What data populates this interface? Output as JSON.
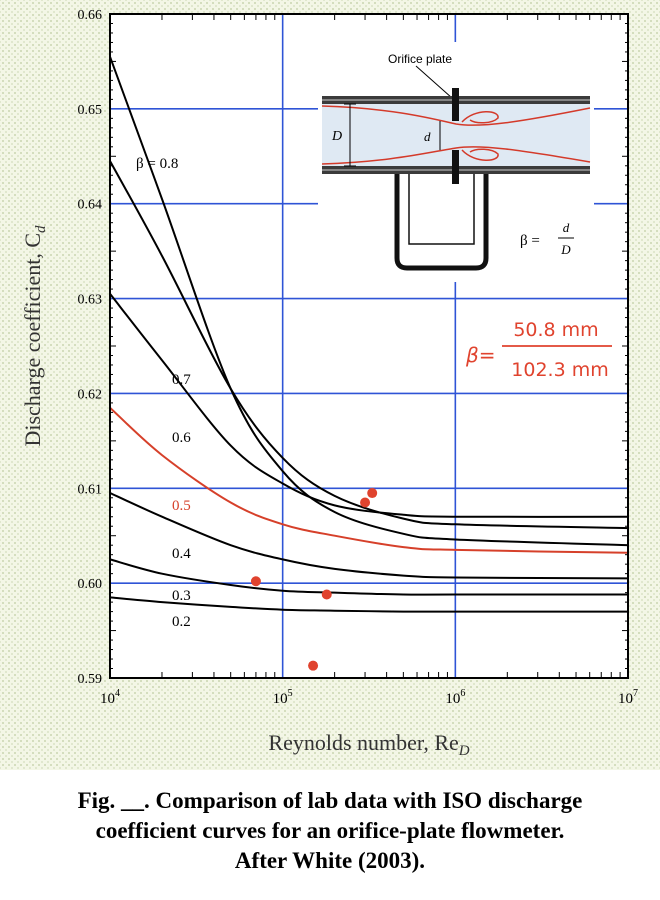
{
  "chart_data": {
    "type": "line",
    "xscale": "log",
    "xlim": [
      10000,
      10000000
    ],
    "ylim": [
      0.59,
      0.66
    ],
    "xlabel_prefix": "Reynolds number, Re",
    "xlabel_sub": "D",
    "ylabel_prefix": "Discharge coefficient, C",
    "ylabel_sub": "d",
    "x_ticks": [
      {
        "value": 10000,
        "base": "10",
        "exp": "4"
      },
      {
        "value": 100000,
        "base": "10",
        "exp": "5"
      },
      {
        "value": 1000000,
        "base": "10",
        "exp": "6"
      },
      {
        "value": 10000000,
        "base": "10",
        "exp": "7"
      }
    ],
    "y_ticks": [
      {
        "value": 0.59,
        "label": "0.59"
      },
      {
        "value": 0.6,
        "label": "0.60"
      },
      {
        "value": 0.61,
        "label": "0.61"
      },
      {
        "value": 0.62,
        "label": "0.62"
      },
      {
        "value": 0.63,
        "label": "0.63"
      },
      {
        "value": 0.64,
        "label": "0.64"
      },
      {
        "value": 0.65,
        "label": "0.65"
      },
      {
        "value": 0.66,
        "label": "0.66"
      }
    ],
    "series": [
      {
        "name": "β = 0.8",
        "label": "β = 0.8",
        "color": "#000000",
        "x": [
          10000,
          20000,
          50000,
          100000,
          200000,
          500000,
          1000000,
          10000000
        ],
        "y": [
          0.6555,
          0.6405,
          0.6205,
          0.6118,
          0.6075,
          0.6052,
          0.6046,
          0.604
        ]
      },
      {
        "name": "0.7",
        "label": "0.7",
        "color": "#000000",
        "x": [
          10000,
          20000,
          50000,
          100000,
          200000,
          500000,
          1000000,
          10000000
        ],
        "y": [
          0.6445,
          0.6345,
          0.6205,
          0.6132,
          0.6092,
          0.6068,
          0.6062,
          0.6058
        ]
      },
      {
        "name": "0.6",
        "label": "0.6",
        "color": "#000000",
        "x": [
          10000,
          20000,
          50000,
          100000,
          200000,
          500000,
          1000000,
          10000000
        ],
        "y": [
          0.6305,
          0.6235,
          0.6145,
          0.6105,
          0.6082,
          0.6072,
          0.607,
          0.607
        ]
      },
      {
        "name": "0.5",
        "label": "0.5",
        "color": "#d6402a",
        "x": [
          10000,
          20000,
          50000,
          100000,
          200000,
          500000,
          1000000,
          10000000
        ],
        "y": [
          0.6185,
          0.6135,
          0.6085,
          0.6062,
          0.605,
          0.6038,
          0.6035,
          0.6032
        ]
      },
      {
        "name": "0.4",
        "label": "0.4",
        "color": "#000000",
        "x": [
          10000,
          20000,
          50000,
          100000,
          200000,
          500000,
          1000000,
          10000000
        ],
        "y": [
          0.6095,
          0.607,
          0.604,
          0.6025,
          0.6015,
          0.6008,
          0.6006,
          0.6005
        ]
      },
      {
        "name": "0.3",
        "label": "0.3",
        "color": "#000000",
        "x": [
          10000,
          20000,
          50000,
          100000,
          200000,
          500000,
          1000000,
          10000000
        ],
        "y": [
          0.6025,
          0.601,
          0.5998,
          0.5992,
          0.599,
          0.5988,
          0.5988,
          0.5988
        ]
      },
      {
        "name": "0.2",
        "label": "0.2",
        "color": "#000000",
        "x": [
          10000,
          20000,
          50000,
          100000,
          200000,
          500000,
          1000000,
          10000000
        ],
        "y": [
          0.5985,
          0.598,
          0.5975,
          0.5972,
          0.5971,
          0.597,
          0.597,
          0.597
        ]
      }
    ],
    "lab_points": {
      "name": "lab data",
      "color": "#e0432e",
      "x": [
        70000,
        150000,
        180000,
        300000,
        330000
      ],
      "y": [
        0.6002,
        0.5913,
        0.5988,
        0.6085,
        0.6095
      ]
    },
    "inset": {
      "title": "Orifice plate",
      "d_label": "d",
      "D_label": "D",
      "beta_lhs": "β =",
      "beta_num": "d",
      "beta_den": "D"
    },
    "annotation": {
      "lhs": "β=",
      "numerator": "50.8 mm",
      "denominator": "102.3 mm",
      "color": "#e0432e"
    },
    "title": ""
  },
  "caption": {
    "line1": "Fig. __.  Comparison of lab data with ISO discharge",
    "line2": "coefficient curves for an orifice-plate flowmeter.",
    "line3": "After White (2003)."
  }
}
